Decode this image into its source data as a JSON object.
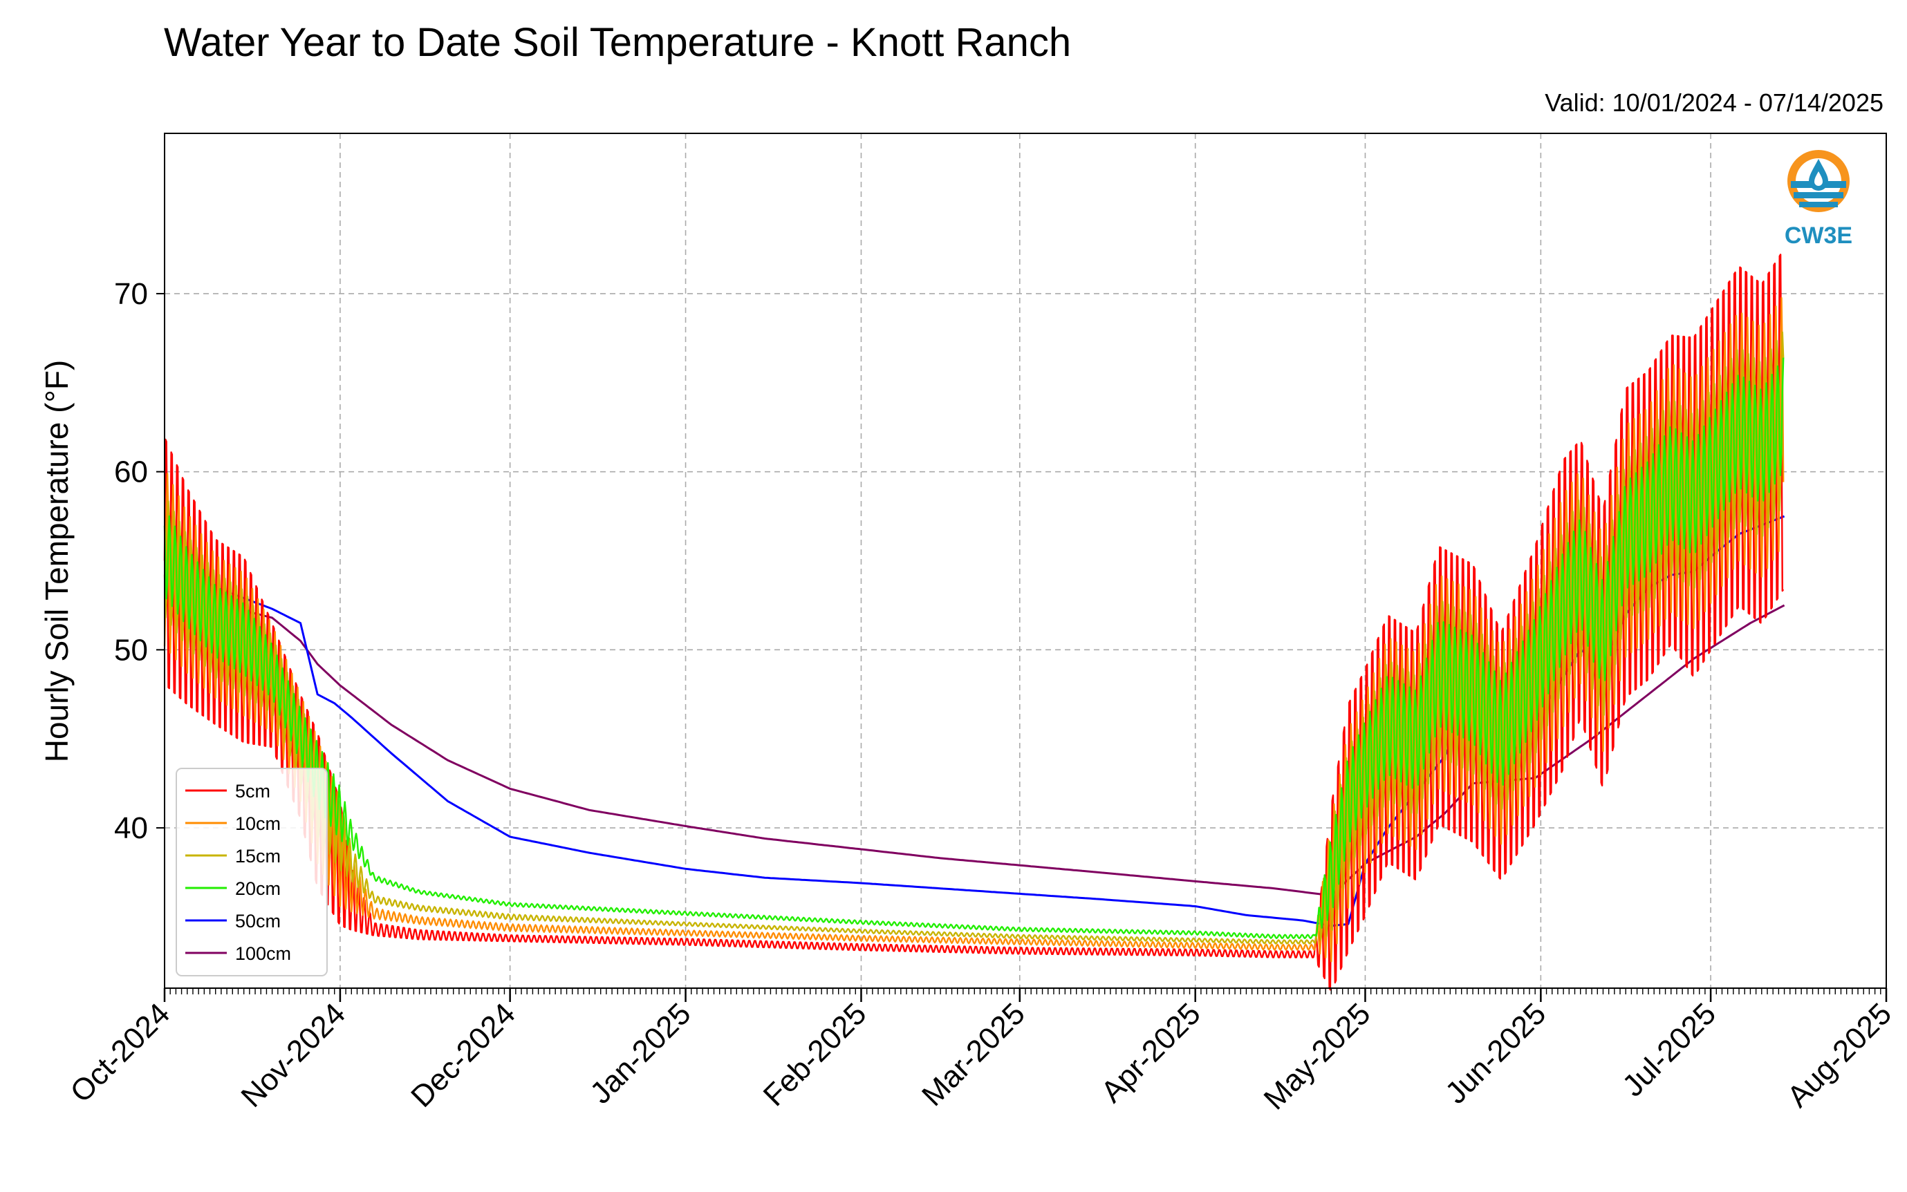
{
  "title": "Water Year to Date Soil Temperature - Knott Ranch",
  "valid_range": "Valid: 10/01/2024 - 07/14/2025",
  "logo": {
    "text": "CW3E",
    "icon": "water-drop-logo-icon",
    "colors": {
      "ring": "#f7941d",
      "water": "#1f8fbf",
      "text": "#1f8fbf"
    }
  },
  "chart_data": {
    "type": "line",
    "title": "Water Year to Date Soil Temperature - Knott Ranch",
    "ylabel": "Hourly Soil Temperature (°F)",
    "xlabel": "",
    "x_range": [
      "2024-10-01",
      "2025-08-01"
    ],
    "ylim": [
      31,
      79
    ],
    "yticks": [
      40,
      50,
      60,
      70
    ],
    "xticks": [
      {
        "date": "2024-10-01",
        "label": "Oct-2024"
      },
      {
        "date": "2024-11-01",
        "label": "Nov-2024"
      },
      {
        "date": "2024-12-01",
        "label": "Dec-2024"
      },
      {
        "date": "2025-01-01",
        "label": "Jan-2025"
      },
      {
        "date": "2025-02-01",
        "label": "Feb-2025"
      },
      {
        "date": "2025-03-01",
        "label": "Mar-2025"
      },
      {
        "date": "2025-04-01",
        "label": "Apr-2025"
      },
      {
        "date": "2025-05-01",
        "label": "May-2025"
      },
      {
        "date": "2025-06-01",
        "label": "Jun-2025"
      },
      {
        "date": "2025-07-01",
        "label": "Jul-2025"
      },
      {
        "date": "2025-08-01",
        "label": "Aug-2025"
      }
    ],
    "grid": true,
    "legend_position": "lower-left",
    "series": [
      {
        "name": "5cm",
        "color": "#ff0000",
        "x": [
          "2024-10-01",
          "2024-10-05",
          "2024-10-10",
          "2024-10-15",
          "2024-10-20",
          "2024-10-25",
          "2024-10-28",
          "2024-11-01",
          "2024-11-03",
          "2024-11-07",
          "2024-11-15",
          "2024-12-01",
          "2025-01-01",
          "2025-02-01",
          "2025-03-01",
          "2025-04-01",
          "2025-04-15",
          "2025-04-22",
          "2025-04-25",
          "2025-04-28",
          "2025-05-01",
          "2025-05-05",
          "2025-05-10",
          "2025-05-14",
          "2025-05-20",
          "2025-05-25",
          "2025-05-31",
          "2025-06-05",
          "2025-06-08",
          "2025-06-12",
          "2025-06-16",
          "2025-06-20",
          "2025-06-24",
          "2025-06-28",
          "2025-07-02",
          "2025-07-06",
          "2025-07-10",
          "2025-07-14"
        ],
        "mean": [
          55,
          53,
          51,
          50,
          48,
          44,
          41,
          38,
          36,
          34.3,
          34,
          33.8,
          33.6,
          33.3,
          33.1,
          33.0,
          32.9,
          32.9,
          36,
          40,
          42,
          45,
          44,
          48,
          47,
          44,
          48,
          52,
          54,
          50,
          56,
          57,
          59,
          58,
          60,
          62,
          61,
          63
        ],
        "amp": [
          8,
          7,
          6,
          6,
          4,
          4,
          5,
          4,
          2,
          0.4,
          0.3,
          0.2,
          0.2,
          0.2,
          0.2,
          0.2,
          0.2,
          0.2,
          6,
          8,
          8,
          8,
          8,
          9,
          9,
          8,
          9,
          10,
          9,
          9,
          10,
          10,
          10,
          11,
          11,
          11,
          11,
          11
        ]
      },
      {
        "name": "10cm",
        "color": "#ff8c00",
        "x": [
          "2024-10-01",
          "2024-10-05",
          "2024-10-10",
          "2024-10-15",
          "2024-10-20",
          "2024-10-25",
          "2024-10-28",
          "2024-11-01",
          "2024-11-03",
          "2024-11-07",
          "2024-11-15",
          "2024-12-01",
          "2025-01-01",
          "2025-02-01",
          "2025-03-01",
          "2025-04-01",
          "2025-04-15",
          "2025-04-22",
          "2025-04-25",
          "2025-04-28",
          "2025-05-01",
          "2025-05-05",
          "2025-05-10",
          "2025-05-14",
          "2025-05-20",
          "2025-05-25",
          "2025-05-31",
          "2025-06-05",
          "2025-06-08",
          "2025-06-12",
          "2025-06-16",
          "2025-06-20",
          "2025-06-24",
          "2025-06-28",
          "2025-07-02",
          "2025-07-06",
          "2025-07-10",
          "2025-07-14"
        ],
        "mean": [
          55.2,
          53.2,
          51.3,
          50.3,
          48.4,
          44.5,
          41.5,
          38.6,
          36.8,
          35.2,
          34.8,
          34.4,
          34.1,
          33.8,
          33.6,
          33.4,
          33.3,
          33.3,
          36.5,
          40.5,
          42.5,
          45.2,
          44.3,
          48.2,
          47.3,
          44.6,
          48.3,
          52.2,
          54.1,
          50.3,
          56.1,
          57.1,
          59.1,
          58.2,
          60.1,
          62.0,
          61.1,
          63.0
        ],
        "amp": [
          5,
          4.5,
          4,
          4,
          3,
          3,
          3.5,
          3,
          1.5,
          0.3,
          0.2,
          0.2,
          0.15,
          0.15,
          0.15,
          0.15,
          0.15,
          0.15,
          4,
          5,
          5,
          5.5,
          5.5,
          6,
          6,
          5.5,
          6,
          6.5,
          6,
          6,
          6.5,
          6.5,
          7,
          7,
          7,
          7,
          7,
          7
        ]
      },
      {
        "name": "15cm",
        "color": "#c8b400",
        "x": [
          "2024-10-01",
          "2024-10-05",
          "2024-10-10",
          "2024-10-15",
          "2024-10-20",
          "2024-10-25",
          "2024-10-28",
          "2024-11-01",
          "2024-11-03",
          "2024-11-07",
          "2024-11-15",
          "2024-12-01",
          "2025-01-01",
          "2025-02-01",
          "2025-03-01",
          "2025-04-01",
          "2025-04-15",
          "2025-04-22",
          "2025-04-25",
          "2025-04-28",
          "2025-05-01",
          "2025-05-05",
          "2025-05-10",
          "2025-05-14",
          "2025-05-20",
          "2025-05-25",
          "2025-05-31",
          "2025-06-05",
          "2025-06-08",
          "2025-06-12",
          "2025-06-16",
          "2025-06-20",
          "2025-06-24",
          "2025-06-28",
          "2025-07-02",
          "2025-07-06",
          "2025-07-10",
          "2025-07-14"
        ],
        "mean": [
          55.3,
          53.3,
          51.4,
          50.4,
          48.6,
          44.8,
          42.0,
          39.6,
          38.0,
          36.0,
          35.5,
          35.0,
          34.6,
          34.2,
          33.9,
          33.7,
          33.6,
          33.6,
          37.0,
          41.0,
          43.0,
          45.5,
          44.6,
          48.4,
          47.5,
          44.9,
          48.5,
          52.3,
          54.2,
          50.5,
          56.2,
          57.2,
          59.2,
          58.3,
          60.2,
          62.1,
          61.2,
          63.1
        ],
        "amp": [
          3.5,
          3.2,
          3,
          3,
          2.2,
          2.2,
          2.5,
          2,
          1,
          0.2,
          0.15,
          0.15,
          0.1,
          0.1,
          0.1,
          0.1,
          0.1,
          0.1,
          3,
          3.5,
          3.5,
          4,
          4,
          4.5,
          4.5,
          4,
          4.5,
          4.5,
          4.5,
          4.5,
          4.5,
          5,
          5,
          5,
          5,
          5,
          5,
          5
        ]
      },
      {
        "name": "20cm",
        "color": "#22ee00",
        "x": [
          "2024-10-01",
          "2024-10-05",
          "2024-10-10",
          "2024-10-15",
          "2024-10-20",
          "2024-10-25",
          "2024-10-28",
          "2024-11-01",
          "2024-11-03",
          "2024-11-07",
          "2024-11-15",
          "2024-12-01",
          "2025-01-01",
          "2025-02-01",
          "2025-03-01",
          "2025-04-01",
          "2025-04-15",
          "2025-04-22",
          "2025-04-25",
          "2025-04-28",
          "2025-05-01",
          "2025-05-05",
          "2025-05-10",
          "2025-05-14",
          "2025-05-20",
          "2025-05-25",
          "2025-05-31",
          "2025-06-05",
          "2025-06-08",
          "2025-06-12",
          "2025-06-16",
          "2025-06-20",
          "2025-06-24",
          "2025-06-28",
          "2025-07-02",
          "2025-07-06",
          "2025-07-10",
          "2025-07-14"
        ],
        "mean": [
          55.5,
          53.5,
          51.6,
          50.6,
          48.8,
          45.2,
          43.0,
          40.8,
          39.6,
          37.2,
          36.4,
          35.7,
          35.2,
          34.7,
          34.3,
          34.1,
          33.9,
          33.9,
          37.3,
          41.5,
          43.5,
          45.8,
          44.9,
          48.7,
          47.8,
          45.2,
          48.8,
          52.5,
          54.4,
          50.8,
          56.4,
          57.4,
          59.4,
          58.5,
          60.4,
          62.3,
          61.4,
          63.3
        ],
        "amp": [
          2.5,
          2.2,
          2,
          2,
          1.5,
          1.5,
          1.8,
          1.5,
          0.7,
          0.15,
          0.1,
          0.1,
          0.1,
          0.1,
          0.1,
          0.1,
          0.1,
          0.1,
          2.2,
          2.5,
          2.5,
          2.8,
          2.8,
          3,
          3,
          3,
          3,
          3,
          3,
          3,
          3,
          3.2,
          3.2,
          3.2,
          3.2,
          3.2,
          3.2,
          3.2
        ]
      },
      {
        "name": "50cm",
        "color": "#0000ff",
        "x": [
          "2024-10-01",
          "2024-10-10",
          "2024-10-20",
          "2024-10-25",
          "2024-10-28",
          "2024-10-31",
          "2024-11-03",
          "2024-11-10",
          "2024-11-20",
          "2024-12-01",
          "2024-12-15",
          "2025-01-01",
          "2025-01-15",
          "2025-02-01",
          "2025-02-15",
          "2025-03-01",
          "2025-03-15",
          "2025-04-01",
          "2025-04-10",
          "2025-04-20",
          "2025-04-25",
          "2025-04-28",
          "2025-05-01",
          "2025-05-05",
          "2025-05-10",
          "2025-05-15",
          "2025-05-18",
          "2025-05-22",
          "2025-05-28",
          "2025-06-01",
          "2025-06-05",
          "2025-06-08",
          "2025-06-12",
          "2025-06-16",
          "2025-06-20",
          "2025-06-24",
          "2025-06-28",
          "2025-07-02",
          "2025-07-06",
          "2025-07-10",
          "2025-07-14"
        ],
        "y": [
          55.3,
          53.5,
          52.3,
          51.5,
          47.5,
          47.0,
          46.2,
          44.2,
          41.5,
          39.5,
          38.6,
          37.7,
          37.2,
          36.9,
          36.6,
          36.3,
          36.0,
          35.6,
          35.1,
          34.8,
          34.5,
          34.6,
          38,
          40.0,
          42.0,
          44.0,
          46.0,
          44.2,
          44.5,
          46.5,
          48.5,
          50.0,
          49.2,
          52.0,
          53.5,
          54.2,
          54.4,
          55.5,
          56.5,
          57.0,
          57.5
        ]
      },
      {
        "name": "100cm",
        "color": "#800060",
        "x": [
          "2024-10-01",
          "2024-10-10",
          "2024-10-20",
          "2024-10-25",
          "2024-10-28",
          "2024-11-01",
          "2024-11-10",
          "2024-11-20",
          "2024-12-01",
          "2024-12-15",
          "2025-01-01",
          "2025-01-15",
          "2025-02-01",
          "2025-02-15",
          "2025-03-01",
          "2025-03-15",
          "2025-04-01",
          "2025-04-15",
          "2025-04-25",
          "2025-05-01",
          "2025-05-10",
          "2025-05-15",
          "2025-05-20",
          "2025-05-31",
          "2025-06-10",
          "2025-06-16",
          "2025-06-22",
          "2025-06-28",
          "2025-07-02",
          "2025-07-08",
          "2025-07-14"
        ],
        "y": [
          52.8,
          52.6,
          51.8,
          50.5,
          49.2,
          48.0,
          45.8,
          43.8,
          42.2,
          41.0,
          40.1,
          39.4,
          38.8,
          38.3,
          37.9,
          37.5,
          37.0,
          36.6,
          36.2,
          38.0,
          39.5,
          40.8,
          42.5,
          42.8,
          45.0,
          46.5,
          48.0,
          49.5,
          50.3,
          51.5,
          52.5
        ]
      }
    ]
  }
}
